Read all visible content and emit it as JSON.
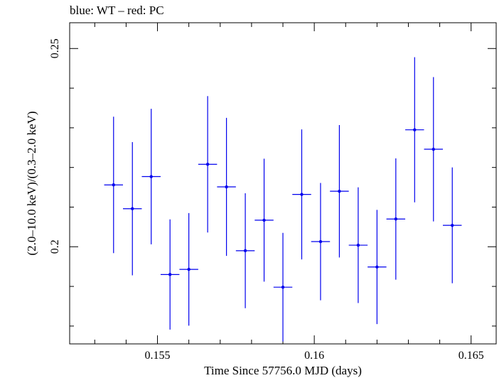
{
  "header": {
    "title": "blue: WT – red: PC"
  },
  "chart_data": {
    "type": "scatter",
    "title": "blue: WT – red: PC",
    "xlabel": "Time Since 57756.0 MJD (days)",
    "ylabel": "(2.0–10.0 keV)/(0.3–2.0 keV)",
    "xlim": [
      0.1522,
      0.1658
    ],
    "ylim": [
      0.1755,
      0.2565
    ],
    "x_ticks": [
      {
        "value": 0.155,
        "label": "0.155"
      },
      {
        "value": 0.16,
        "label": "0.16"
      },
      {
        "value": 0.165,
        "label": "0.165"
      }
    ],
    "y_ticks": [
      {
        "value": 0.2,
        "label": "0.2"
      },
      {
        "value": 0.25,
        "label": "0.25"
      }
    ],
    "grid": false,
    "legend": "none",
    "series": [
      {
        "color": "#0000ee",
        "x_err": 0.0003,
        "points": [
          {
            "x": 0.1536,
            "y": 0.2156,
            "yerr": 0.0172
          },
          {
            "x": 0.1542,
            "y": 0.2096,
            "yerr": 0.0168
          },
          {
            "x": 0.1548,
            "y": 0.2177,
            "yerr": 0.0171
          },
          {
            "x": 0.1554,
            "y": 0.193,
            "yerr": 0.0139
          },
          {
            "x": 0.156,
            "y": 0.1943,
            "yerr": 0.0142
          },
          {
            "x": 0.1566,
            "y": 0.2208,
            "yerr": 0.0172
          },
          {
            "x": 0.1572,
            "y": 0.2151,
            "yerr": 0.0174
          },
          {
            "x": 0.1578,
            "y": 0.199,
            "yerr": 0.0145
          },
          {
            "x": 0.1584,
            "y": 0.2067,
            "yerr": 0.0155
          },
          {
            "x": 0.159,
            "y": 0.1898,
            "yerr": 0.0137
          },
          {
            "x": 0.1596,
            "y": 0.2132,
            "yerr": 0.0164
          },
          {
            "x": 0.1602,
            "y": 0.2013,
            "yerr": 0.0148
          },
          {
            "x": 0.1608,
            "y": 0.214,
            "yerr": 0.0167
          },
          {
            "x": 0.1614,
            "y": 0.2004,
            "yerr": 0.0146
          },
          {
            "x": 0.162,
            "y": 0.1949,
            "yerr": 0.0144
          },
          {
            "x": 0.1626,
            "y": 0.207,
            "yerr": 0.0153
          },
          {
            "x": 0.1632,
            "y": 0.2295,
            "yerr": 0.0183
          },
          {
            "x": 0.1638,
            "y": 0.2246,
            "yerr": 0.0182
          },
          {
            "x": 0.1644,
            "y": 0.2054,
            "yerr": 0.0146
          }
        ]
      }
    ]
  }
}
